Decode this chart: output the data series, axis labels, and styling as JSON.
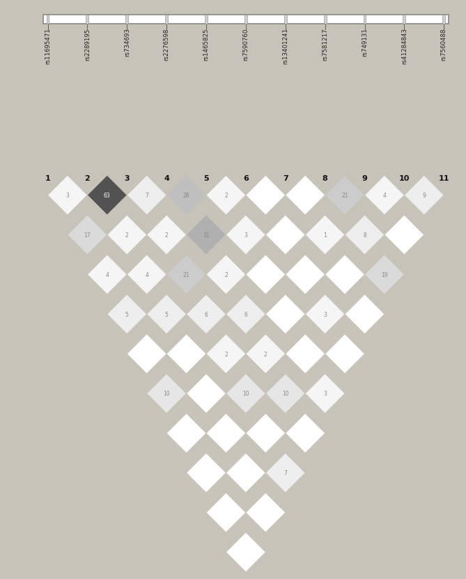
{
  "snp_labels": [
    "rs11695471",
    "rs2289195",
    "rs734693",
    "rs2276598",
    "rs1465825",
    "rs7590760",
    "rs13401241",
    "rs7581217",
    "rs749131",
    "rs41284843",
    "rs7560488"
  ],
  "n": 11,
  "lower_tri": [
    [
      3
    ],
    [
      17,
      63
    ],
    [
      4,
      2,
      7
    ],
    [
      5,
      4,
      2,
      28
    ],
    [
      0,
      5,
      21,
      31,
      2
    ],
    [
      10,
      0,
      6,
      2,
      3,
      0
    ],
    [
      0,
      0,
      2,
      6,
      0,
      0,
      0
    ],
    [
      0,
      0,
      10,
      2,
      0,
      0,
      1,
      21
    ],
    [
      0,
      0,
      0,
      10,
      0,
      3,
      0,
      8,
      4
    ],
    [
      0,
      0,
      7,
      0,
      3,
      0,
      0,
      19,
      0,
      9
    ]
  ],
  "background_color": "#c8c3b8",
  "chrom_bar_color": "#ffffff",
  "chrom_bar_edge": "#888888"
}
